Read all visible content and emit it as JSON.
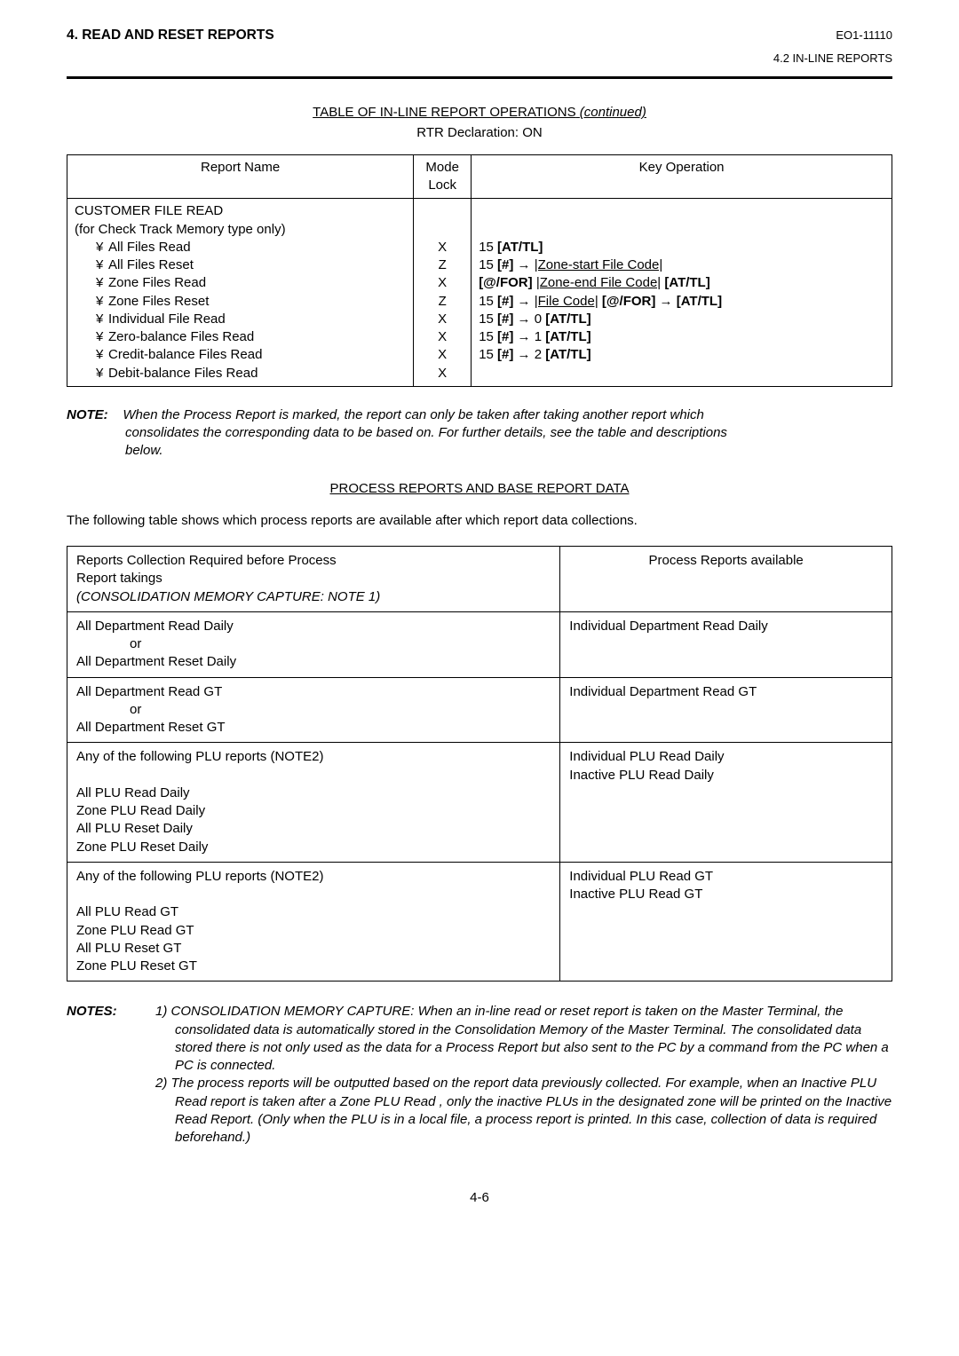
{
  "header": {
    "section": "4.  READ AND RESET REPORTS",
    "doc_code": "EO1-11110",
    "subsection": "4.2  IN-LINE REPORTS"
  },
  "table1": {
    "title": "TABLE OF IN-LINE REPORT OPERATIONS",
    "continued": "(continued)",
    "rtr": "RTR Declaration:  ON",
    "headers": {
      "report_name": "Report Name",
      "mode_lock": "Mode Lock",
      "key_operation": "Key Operation"
    },
    "body": {
      "title_line": "CUSTOMER FILE READ",
      "subtitle": "(for Check Track Memory type only)",
      "items": [
        {
          "label": "All Files Read",
          "mode": "X"
        },
        {
          "label": "All Files Reset",
          "mode": "Z"
        },
        {
          "label": "Zone Files Read",
          "mode": "X"
        },
        {
          "label": "Zone Files Reset",
          "mode": "Z"
        },
        {
          "label": "Individual File Read",
          "mode": "X"
        },
        {
          "label": "Zero-balance Files Read",
          "mode": "X"
        },
        {
          "label": "Credit-balance Files Read",
          "mode": "X"
        },
        {
          "label": "Debit-balance Files Read",
          "mode": "X"
        }
      ],
      "key_ops": {
        "l1_pre": "15",
        "l1_bold": " [AT/TL]",
        "l2_pre": "15 ",
        "l2_bold_hash": "[#]",
        "l2_arrow": " → ",
        "l2_ul": "|Zone-start File Code|",
        "l3_bold_for": "[@/FOR]",
        "l3_mid": "  ",
        "l3_ul": "|Zone-end File Code|",
        "l3_bold_tail": "  [AT/TL]",
        "l4_pre": "15 ",
        "l4_bold_hash": "[#]",
        "l4_arrow": " → ",
        "l4_ul": "|File Code|",
        "l4_bold_for": " [@/FOR]",
        "l4_arrow2": " → ",
        "l4_bold_tail": "[AT/TL]",
        "l5_pre": "15 ",
        "l5_bold_hash": "[#]",
        "l5_arrow": " → 0 ",
        "l5_bold_tail": "[AT/TL]",
        "l6_pre": "15 ",
        "l6_bold_hash": "[#]",
        "l6_arrow": " → 1 ",
        "l6_bold_tail": "[AT/TL]",
        "l7_pre": "15 ",
        "l7_bold_hash": "[#]",
        "l7_arrow": " → 2 ",
        "l7_bold_tail": "[AT/TL]"
      }
    }
  },
  "note": {
    "label": "NOTE:",
    "text": "When the  Process Report  is marked, the report can only be taken after taking another report which consolidates the corresponding data to be based on.  For further details, see the table and descriptions below."
  },
  "process": {
    "title": "PROCESS REPORTS AND BASE REPORT DATA",
    "intro": "The following table shows which process reports are available after which report data collections.",
    "headers": {
      "left1": "Reports Collection Required before Process",
      "left2": "Report takings",
      "left3": "(CONSOLIDATION MEMORY CAPTURE:  NOTE 1)",
      "right": "Process Reports available"
    },
    "rows": [
      {
        "left": [
          "All Department Read Daily",
          "or",
          "All Department Reset Daily"
        ],
        "right": [
          "Individual Department Read Daily"
        ]
      },
      {
        "left": [
          "All Department Read GT",
          "or",
          "All Department Reset GT"
        ],
        "right": [
          "Individual Department Read GT"
        ]
      },
      {
        "left": [
          "Any of the following PLU reports (NOTE2)",
          "",
          "All PLU Read Daily",
          "Zone PLU Read Daily",
          "All PLU Reset Daily",
          "Zone PLU Reset Daily"
        ],
        "right": [
          "Individual PLU Read Daily",
          "Inactive PLU Read Daily"
        ]
      },
      {
        "left": [
          "Any of the following PLU reports (NOTE2)",
          "",
          "All PLU Read GT",
          "Zone PLU Read GT",
          "All PLU Reset GT",
          "Zone PLU Reset GT"
        ],
        "right": [
          "Individual PLU Read GT",
          "Inactive PLU Read GT"
        ]
      }
    ]
  },
  "notes": {
    "label": "NOTES:",
    "items": [
      "1)  CONSOLIDATION MEMORY CAPTURE:  When an in-line read or reset report is taken on the Master Terminal, the consolidated data is automatically stored in the Consolidation Memory of the Master Terminal. The consolidated data stored there is not only used as the data for a Process Report but also sent to the PC by a command from the PC when a PC is connected.",
      "2)  The process reports will be outputted based on the report data previously collected.  For example, when an  Inactive PLU Read  report is taken after a  Zone PLU Read , only the inactive PLUs in the designated zone will be printed on the Inactive Read Report. (Only when the PLU is in a local file, a process report is printed.  In this case, collection of data is required beforehand.)"
    ]
  },
  "page_number": "4-6"
}
